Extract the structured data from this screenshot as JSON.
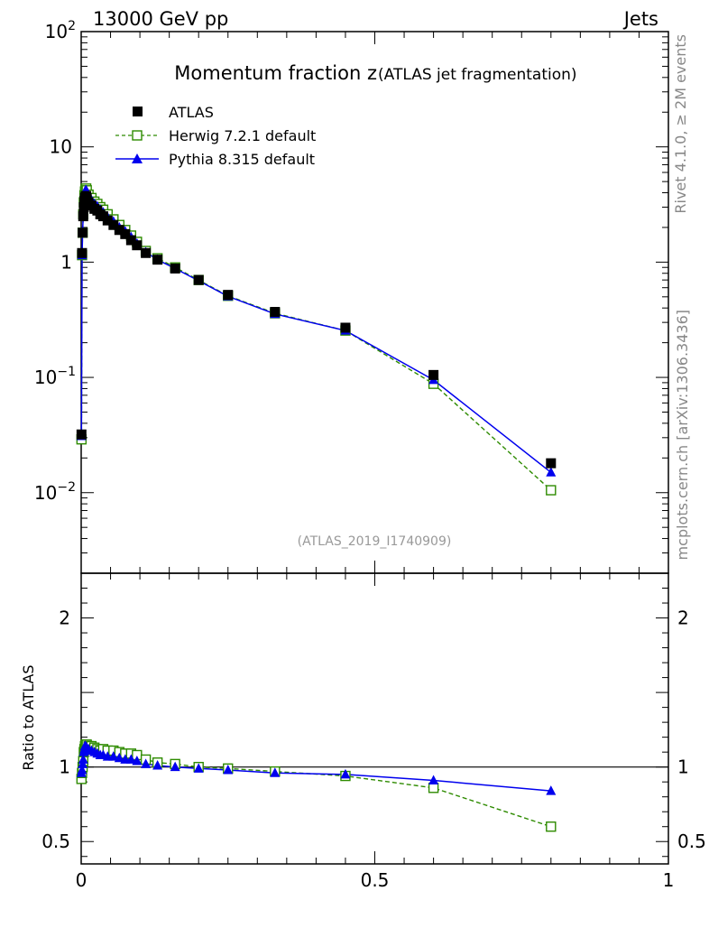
{
  "header": {
    "left": "13000 GeV pp",
    "right": "Jets"
  },
  "side": {
    "top": "Rivet 4.1.0, ≥ 2M events",
    "bottom": "mcplots.cern.ch [arXiv:1306.3436]"
  },
  "colors": {
    "atlas": "#000000",
    "herwig": "#2e8b00",
    "pythia": "#0000ee",
    "watermark": "#999999"
  },
  "chart_data": {
    "type": "line",
    "title": "Momentum fraction z",
    "title_suffix": "(ATLAS jet fragmentation)",
    "watermark": "(ATLAS_2019_I1740909)",
    "xlabel": "",
    "xlim": [
      0,
      1
    ],
    "ylim_main": [
      0.002,
      100
    ],
    "yscale_main": "log",
    "ylim_ratio": [
      0.35,
      2.3
    ],
    "ratio_ylabel": "Ratio to ATLAS",
    "x_ticks": [
      {
        "v": 0,
        "label": "0"
      },
      {
        "v": 0.5,
        "label": "0.5"
      },
      {
        "v": 1,
        "label": "1"
      }
    ],
    "y_ticks_main": [
      {
        "v": 0.01,
        "base": "10",
        "exp": "−2"
      },
      {
        "v": 0.1,
        "base": "10",
        "exp": "−1"
      },
      {
        "v": 1,
        "base": "1",
        "exp": ""
      },
      {
        "v": 10,
        "base": "10",
        "exp": ""
      },
      {
        "v": 100,
        "base": "10",
        "exp": "2"
      }
    ],
    "y_ticks_ratio": [
      {
        "v": 0.5,
        "label": "0.5"
      },
      {
        "v": 1,
        "label": "1"
      },
      {
        "v": 2,
        "label": "2"
      }
    ],
    "legend": [
      {
        "name": "ATLAS",
        "marker": "square-filled",
        "color": "#000000"
      },
      {
        "name": "Herwig 7.2.1 default",
        "marker": "square-open",
        "color": "#2e8b00",
        "dash": true
      },
      {
        "name": "Pythia 8.315 default",
        "marker": "triangle",
        "color": "#0000ee"
      }
    ],
    "x": [
      0.0005,
      0.0015,
      0.0025,
      0.0035,
      0.0045,
      0.0055,
      0.0065,
      0.0075,
      0.0085,
      0.0095,
      0.0125,
      0.0175,
      0.0225,
      0.0275,
      0.0325,
      0.0375,
      0.045,
      0.055,
      0.065,
      0.075,
      0.085,
      0.095,
      0.11,
      0.13,
      0.16,
      0.2,
      0.25,
      0.33,
      0.45,
      0.6,
      0.8
    ],
    "series": [
      {
        "name": "ATLAS",
        "values": [
          0.032,
          1.2,
          1.8,
          2.5,
          3.0,
          3.4,
          3.6,
          3.7,
          3.75,
          3.6,
          3.3,
          3.1,
          2.9,
          2.8,
          2.6,
          2.5,
          2.3,
          2.1,
          1.9,
          1.75,
          1.55,
          1.4,
          1.2,
          1.05,
          0.88,
          0.7,
          0.52,
          0.37,
          0.27,
          0.105,
          0.018
        ]
      },
      {
        "name": "Herwig 7.2.1 default",
        "values": [
          0.029,
          1.15,
          1.8,
          2.6,
          3.3,
          3.8,
          4.1,
          4.3,
          4.35,
          4.2,
          3.85,
          3.6,
          3.35,
          3.2,
          3.0,
          2.85,
          2.6,
          2.35,
          2.1,
          1.9,
          1.7,
          1.5,
          1.25,
          1.08,
          0.9,
          0.7,
          0.51,
          0.36,
          0.255,
          0.088,
          0.0105
        ]
      },
      {
        "name": "Pythia 8.315 default",
        "values": [
          0.031,
          1.15,
          1.85,
          2.6,
          3.3,
          3.8,
          4.1,
          4.2,
          4.2,
          4.1,
          3.7,
          3.45,
          3.2,
          3.05,
          2.85,
          2.7,
          2.45,
          2.25,
          2.0,
          1.85,
          1.65,
          1.45,
          1.22,
          1.05,
          0.88,
          0.69,
          0.505,
          0.355,
          0.255,
          0.095,
          0.015
        ]
      }
    ],
    "ratios": [
      {
        "name": "Herwig 7.2.1 default",
        "values": [
          0.92,
          0.96,
          1.0,
          1.04,
          1.1,
          1.12,
          1.14,
          1.15,
          1.15,
          1.15,
          1.14,
          1.14,
          1.13,
          1.12,
          1.11,
          1.12,
          1.11,
          1.11,
          1.1,
          1.09,
          1.09,
          1.08,
          1.05,
          1.03,
          1.02,
          1.0,
          0.99,
          0.97,
          0.94,
          0.86,
          0.6
        ]
      },
      {
        "name": "Pythia 8.315 default",
        "values": [
          0.96,
          0.98,
          1.02,
          1.05,
          1.1,
          1.12,
          1.14,
          1.14,
          1.13,
          1.13,
          1.12,
          1.11,
          1.1,
          1.09,
          1.08,
          1.08,
          1.07,
          1.07,
          1.06,
          1.05,
          1.05,
          1.04,
          1.02,
          1.01,
          1.0,
          0.99,
          0.98,
          0.96,
          0.95,
          0.91,
          0.84
        ]
      }
    ]
  }
}
